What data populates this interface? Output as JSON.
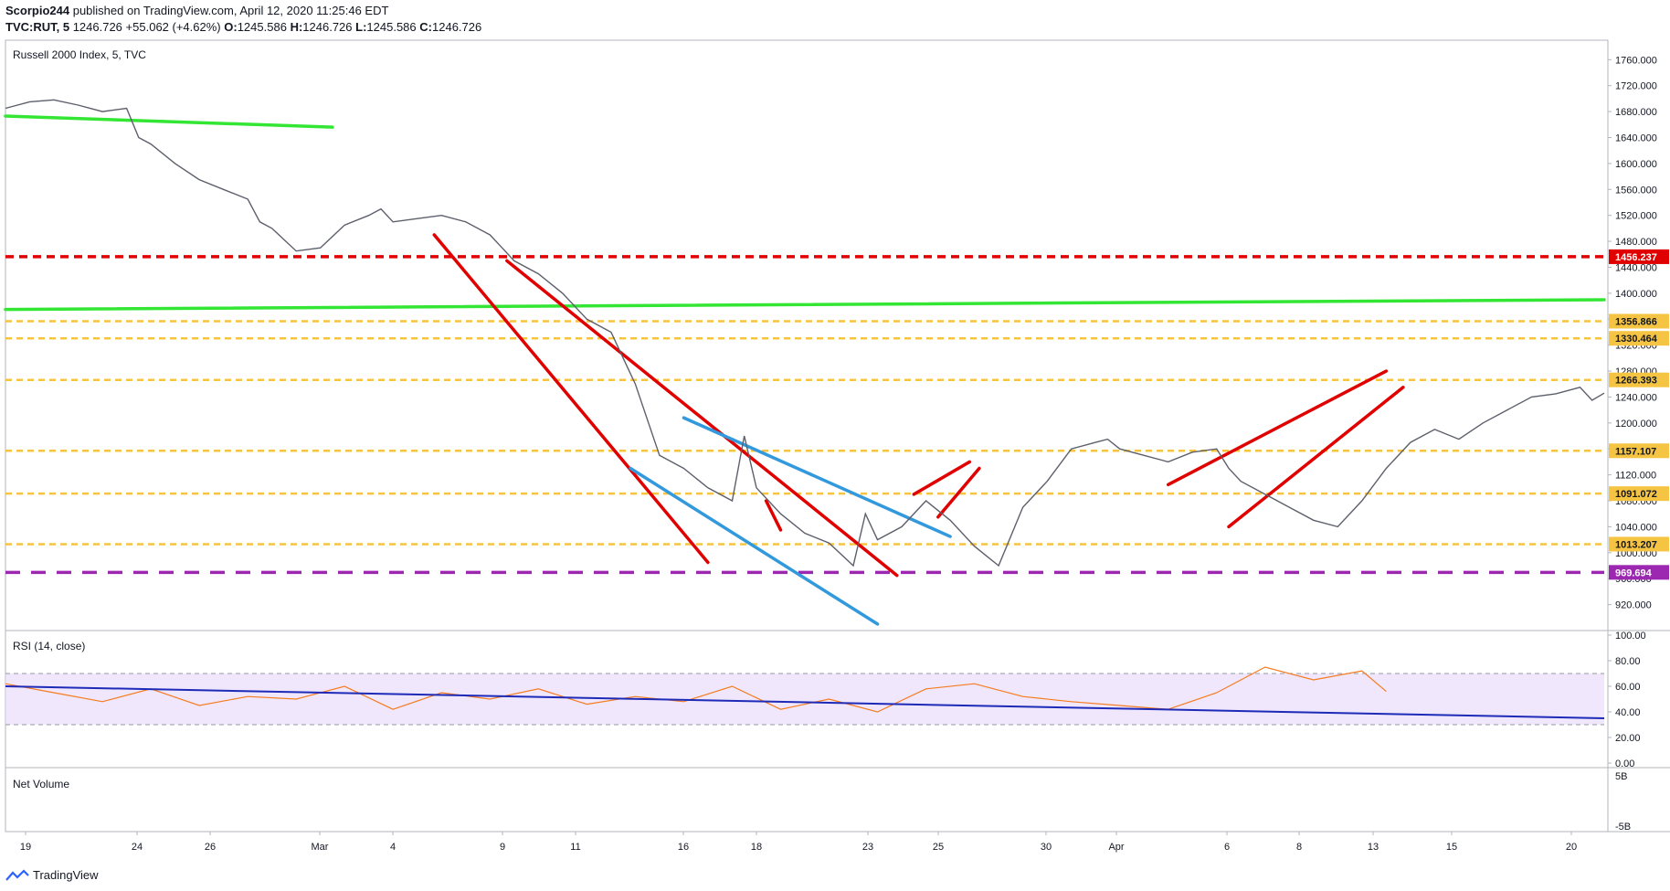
{
  "header": {
    "author": "Scorpio244",
    "published_text": "published on TradingView.com, April 12, 2020 11:25:46 EDT",
    "symbol": "TVC:RUT, 5",
    "last": "1246.726",
    "change": "+55.062 (+4.62%)",
    "o_label": "O:",
    "o_value": "1245.586",
    "h_label": "H:",
    "h_value": "1246.726",
    "l_label": "L:",
    "l_value": "1245.586",
    "c_label": "C:",
    "c_value": "1246.726"
  },
  "footer": {
    "brand": "TradingView"
  },
  "colors": {
    "price_line": "#5d606b",
    "green": "#33e633",
    "red": "#e00000",
    "blue": "#3399dd",
    "purple": "#9c27b0",
    "yellow": "#f6c443",
    "rsi_line": "#f57c1f",
    "rsi_band": "#e9ddfb",
    "rsi_trend": "#1e2bb8"
  },
  "chart_data": [
    {
      "type": "line",
      "title": "Russell 2000 Index, 5, TVC",
      "ylim": [
        880,
        1790
      ],
      "yticks": [
        "1760.000",
        "1720.000",
        "1680.000",
        "1640.000",
        "1600.000",
        "1560.000",
        "1520.000",
        "1480.000",
        "1440.000",
        "1400.000",
        "1360.000",
        "1320.000",
        "1280.000",
        "1240.000",
        "1200.000",
        "1160.000",
        "1120.000",
        "1080.000",
        "1040.000",
        "1000.000",
        "960.000",
        "920.000"
      ],
      "x_ticks": [
        "19",
        "24",
        "26",
        "Mar",
        "4",
        "9",
        "11",
        "16",
        "18",
        "23",
        "25",
        "30",
        "Apr",
        "6",
        "8",
        "13",
        "15",
        "20"
      ],
      "price_labels": [
        {
          "label": "1456.237",
          "value": 1456.237,
          "color": "#e00000"
        },
        {
          "label": "1356.866",
          "value": 1356.866,
          "color": "#f6c443"
        },
        {
          "label": "1330.464",
          "value": 1330.464,
          "color": "#f6c443"
        },
        {
          "label": "1266.393",
          "value": 1266.393,
          "color": "#f6c443"
        },
        {
          "label": "1157.107",
          "value": 1157.107,
          "color": "#f6c443"
        },
        {
          "label": "1091.072",
          "value": 1091.072,
          "color": "#f6c443"
        },
        {
          "label": "1013.207",
          "value": 1013.207,
          "color": "#f6c443"
        },
        {
          "label": "969.694",
          "value": 969.694,
          "color": "#9c27b0"
        }
      ],
      "series": [
        {
          "x": [
            0,
            1,
            2,
            3,
            4,
            5,
            5.5,
            6,
            7,
            8,
            9,
            10,
            10.5,
            11,
            12,
            13,
            14,
            15,
            15.5,
            16,
            17,
            18,
            19,
            20,
            20.5,
            21,
            22,
            23,
            24,
            25,
            25.5,
            26,
            27,
            28,
            29,
            30,
            30.5,
            31,
            32,
            33,
            34,
            35,
            35.5,
            36,
            37,
            38,
            39,
            40,
            40.5,
            41,
            42,
            43,
            44,
            45,
            45.5,
            46,
            47,
            48,
            49,
            50,
            50.5,
            51,
            52,
            53,
            54,
            55,
            56,
            57,
            58,
            59,
            60,
            61,
            62,
            63,
            64,
            65,
            65.5,
            66
          ],
          "values": [
            1685,
            1695,
            1698,
            1690,
            1680,
            1685,
            1640,
            1630,
            1600,
            1575,
            1560,
            1545,
            1510,
            1500,
            1465,
            1470,
            1505,
            1520,
            1530,
            1510,
            1515,
            1520,
            1510,
            1490,
            1470,
            1450,
            1430,
            1400,
            1360,
            1340,
            1300,
            1260,
            1150,
            1130,
            1100,
            1080,
            1180,
            1100,
            1060,
            1030,
            1015,
            980,
            1060,
            1020,
            1040,
            1080,
            1050,
            1010,
            995,
            980,
            1070,
            1110,
            1160,
            1170,
            1175,
            1160,
            1150,
            1140,
            1155,
            1160,
            1130,
            1110,
            1090,
            1070,
            1050,
            1040,
            1080,
            1130,
            1170,
            1190,
            1175,
            1200,
            1220,
            1240,
            1245,
            1255,
            1235,
            1246
          ]
        }
      ],
      "drawings": [
        {
          "color": "#33e633",
          "style": "solid",
          "from": [
            0,
            1673
          ],
          "to": [
            13.5,
            1656
          ]
        },
        {
          "color": "#33e633",
          "style": "solid",
          "from": [
            0,
            1375
          ],
          "to": [
            66,
            1390
          ]
        },
        {
          "color": "#e00000",
          "style": "dashed",
          "from": [
            0,
            1456.237
          ],
          "to": [
            66,
            1456.237
          ]
        },
        {
          "color": "#f6c443",
          "style": "dashed",
          "from": [
            0,
            1356.866
          ],
          "to": [
            66,
            1356.866
          ]
        },
        {
          "color": "#f6c443",
          "style": "dashed",
          "from": [
            0,
            1330.464
          ],
          "to": [
            66,
            1330.464
          ]
        },
        {
          "color": "#f6c443",
          "style": "dashed",
          "from": [
            0,
            1266.393
          ],
          "to": [
            66,
            1266.393
          ]
        },
        {
          "color": "#f6c443",
          "style": "dashed",
          "from": [
            0,
            1157.107
          ],
          "to": [
            66,
            1157.107
          ]
        },
        {
          "color": "#f6c443",
          "style": "dashed",
          "from": [
            0,
            1091.072
          ],
          "to": [
            66,
            1091.072
          ]
        },
        {
          "color": "#f6c443",
          "style": "dashed",
          "from": [
            0,
            1013.207
          ],
          "to": [
            66,
            1013.207
          ]
        },
        {
          "color": "#9c27b0",
          "style": "dashed",
          "from": [
            0,
            969.694
          ],
          "to": [
            66,
            969.694
          ]
        },
        {
          "color": "#e00000",
          "style": "solid",
          "from": [
            17.7,
            1490
          ],
          "to": [
            29,
            985
          ]
        },
        {
          "color": "#e00000",
          "style": "solid",
          "from": [
            20.7,
            1450
          ],
          "to": [
            36.8,
            965
          ]
        },
        {
          "color": "#3399dd",
          "style": "solid",
          "from": [
            25.8,
            1130
          ],
          "to": [
            36,
            890
          ]
        },
        {
          "color": "#3399dd",
          "style": "solid",
          "from": [
            28,
            1208
          ],
          "to": [
            39,
            1025
          ]
        },
        {
          "color": "#e00000",
          "style": "solid",
          "from": [
            31.4,
            1080
          ],
          "to": [
            32,
            1035
          ]
        },
        {
          "color": "#e00000",
          "style": "solid",
          "from": [
            37.5,
            1090
          ],
          "to": [
            39.8,
            1140
          ]
        },
        {
          "color": "#e00000",
          "style": "solid",
          "from": [
            38.5,
            1055
          ],
          "to": [
            40.2,
            1130
          ]
        },
        {
          "color": "#e00000",
          "style": "solid",
          "from": [
            48,
            1105
          ],
          "to": [
            57,
            1280
          ]
        },
        {
          "color": "#e00000",
          "style": "solid",
          "from": [
            50.5,
            1040
          ],
          "to": [
            57.7,
            1255
          ]
        }
      ]
    },
    {
      "type": "line",
      "title": "RSI (14, close)",
      "ylim": [
        0,
        100
      ],
      "yticks": [
        "100.00",
        "80.00",
        "60.00",
        "40.00",
        "20.00",
        "0.00"
      ],
      "bands": [
        30,
        70
      ],
      "series": [
        {
          "x": [
            0,
            2,
            4,
            6,
            8,
            10,
            12,
            14,
            16,
            18,
            20,
            22,
            24,
            26,
            28,
            30,
            32,
            34,
            36,
            38,
            40,
            42,
            44,
            46,
            48,
            50,
            52,
            54,
            56,
            57
          ],
          "values": [
            62,
            55,
            48,
            58,
            45,
            52,
            50,
            60,
            42,
            55,
            50,
            58,
            46,
            52,
            48,
            60,
            42,
            50,
            40,
            58,
            62,
            52,
            48,
            45,
            42,
            55,
            75,
            65,
            72,
            56
          ]
        }
      ],
      "trend": {
        "from": [
          0,
          60
        ],
        "to": [
          66,
          35
        ]
      }
    },
    {
      "type": "bar",
      "title": "Net Volume",
      "yticks": [
        "5B",
        "-5B"
      ]
    }
  ]
}
